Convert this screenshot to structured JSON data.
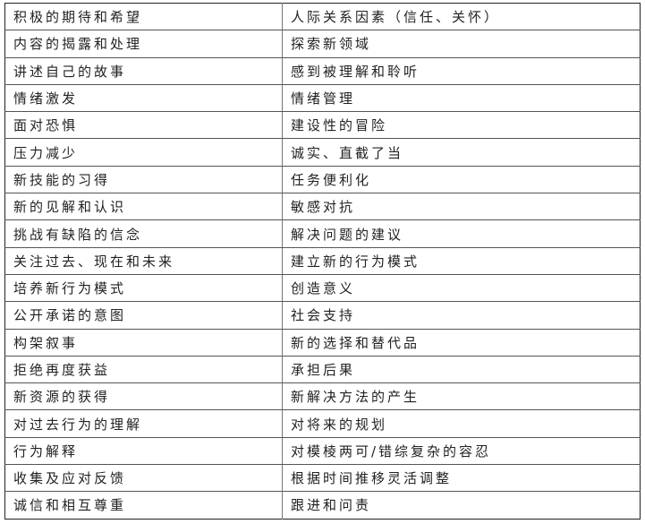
{
  "table": {
    "rows": [
      [
        "积极的期待和希望",
        "人际关系因素（信任、关怀）"
      ],
      [
        "内容的揭露和处理",
        "探索新领域"
      ],
      [
        "讲述自己的故事",
        "感到被理解和聆听"
      ],
      [
        "情绪激发",
        "情绪管理"
      ],
      [
        "面对恐惧",
        "建设性的冒险"
      ],
      [
        "压力减少",
        "诚实、直截了当"
      ],
      [
        "新技能的习得",
        "任务便利化"
      ],
      [
        "新的见解和认识",
        "敏感对抗"
      ],
      [
        "挑战有缺陷的信念",
        "解决问题的建议"
      ],
      [
        "关注过去、现在和未来",
        "建立新的行为模式"
      ],
      [
        "培养新行为模式",
        "创造意义"
      ],
      [
        "公开承诺的意图",
        "社会支持"
      ],
      [
        "构架叙事",
        "新的选择和替代品"
      ],
      [
        "拒绝再度获益",
        "承担后果"
      ],
      [
        "新资源的获得",
        "新解决方法的产生"
      ],
      [
        "对过去行为的理解",
        "对将来的规划"
      ],
      [
        "行为解释",
        "对模棱两可/错综复杂的容忍"
      ],
      [
        "收集及应对反馈",
        "根据时间推移灵活调整"
      ],
      [
        "诚信和相互尊重",
        "跟进和问责"
      ]
    ]
  }
}
